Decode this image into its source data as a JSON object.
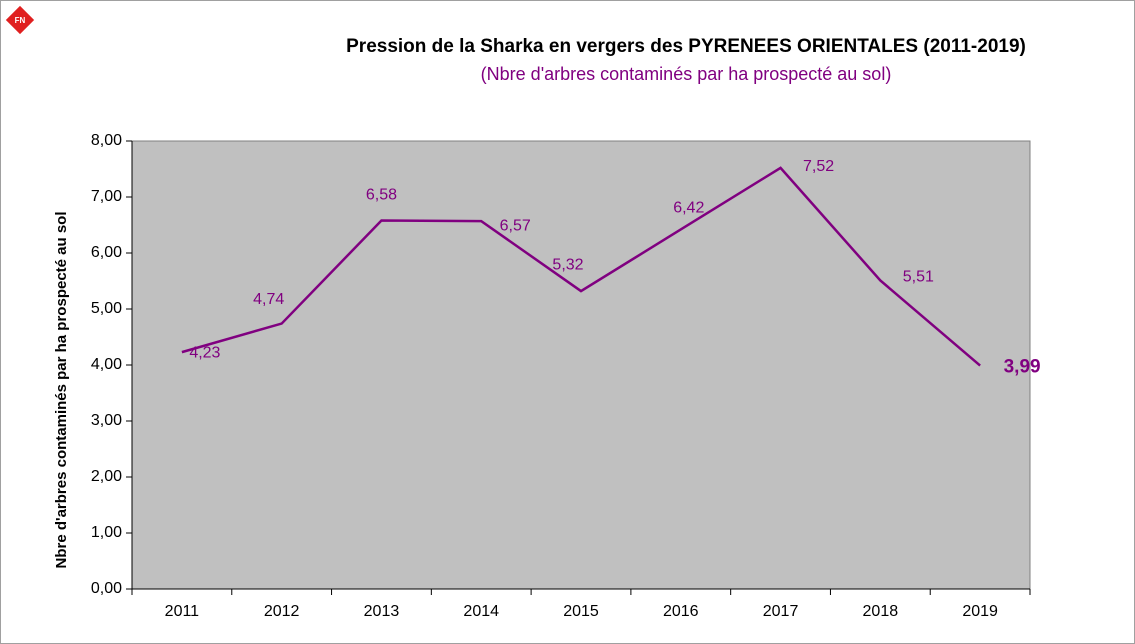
{
  "chart_data": {
    "type": "line",
    "title": "Pression de la Sharka en vergers des PYRENEES ORIENTALES (2011-2019)",
    "subtitle": "(Nbre d'arbres contaminés par ha prospecté au sol)",
    "y_label": "Nbre d'arbres contaminés par ha prospecté au sol",
    "categories": [
      "2011",
      "2012",
      "2013",
      "2014",
      "2015",
      "2016",
      "2017",
      "2018",
      "2019"
    ],
    "series": [
      {
        "name": "Pression",
        "color": "#800080",
        "values": [
          4.23,
          4.74,
          6.58,
          6.57,
          5.32,
          6.42,
          7.52,
          5.51,
          3.99
        ],
        "value_labels": [
          "4,23",
          "4,74",
          "6,58",
          "6,57",
          "5,32",
          "6,42",
          "7,52",
          "5,51",
          "3,99"
        ]
      }
    ],
    "ylim": [
      0,
      8
    ],
    "yticks": [
      {
        "value": 0,
        "label": "0,00"
      },
      {
        "value": 1,
        "label": "1,00"
      },
      {
        "value": 2,
        "label": "2,00"
      },
      {
        "value": 3,
        "label": "3,00"
      },
      {
        "value": 4,
        "label": "4,00"
      },
      {
        "value": 5,
        "label": "5,00"
      },
      {
        "value": 6,
        "label": "6,00"
      },
      {
        "value": 7,
        "label": "7,00"
      },
      {
        "value": 8,
        "label": "8,00"
      }
    ],
    "plot_background": "#c0c0c0"
  }
}
